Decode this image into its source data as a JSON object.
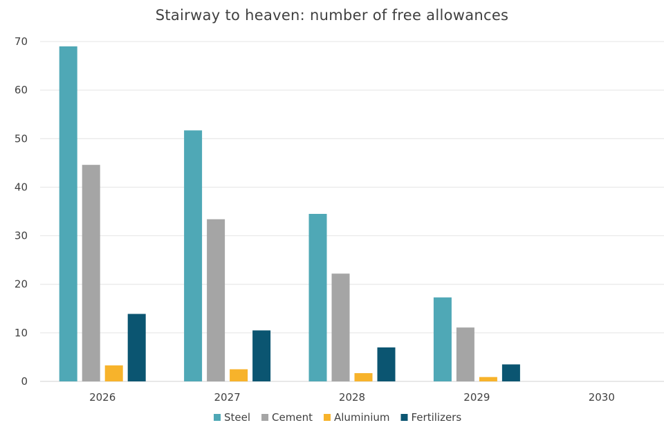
{
  "chart_data": {
    "type": "bar",
    "title": "Stairway to heaven: number of free allowances",
    "categories": [
      "2026",
      "2027",
      "2028",
      "2029",
      "2030"
    ],
    "series": [
      {
        "name": "Steel",
        "color": "#4FA8B6",
        "values": [
          69,
          51.7,
          34.5,
          17.3,
          0
        ]
      },
      {
        "name": "Cement",
        "color": "#A5A5A5",
        "values": [
          44.6,
          33.4,
          22.2,
          11.1,
          0
        ]
      },
      {
        "name": "Aluminium",
        "color": "#F7B32B",
        "values": [
          3.3,
          2.5,
          1.7,
          0.9,
          0
        ]
      },
      {
        "name": "Fertilizers",
        "color": "#0B5571",
        "values": [
          13.9,
          10.5,
          7.0,
          3.5,
          0
        ]
      }
    ],
    "ylim": [
      0,
      70
    ],
    "yticks": [
      0,
      10,
      20,
      30,
      40,
      50,
      60,
      70
    ],
    "grid": true,
    "legend_position": "bottom"
  }
}
